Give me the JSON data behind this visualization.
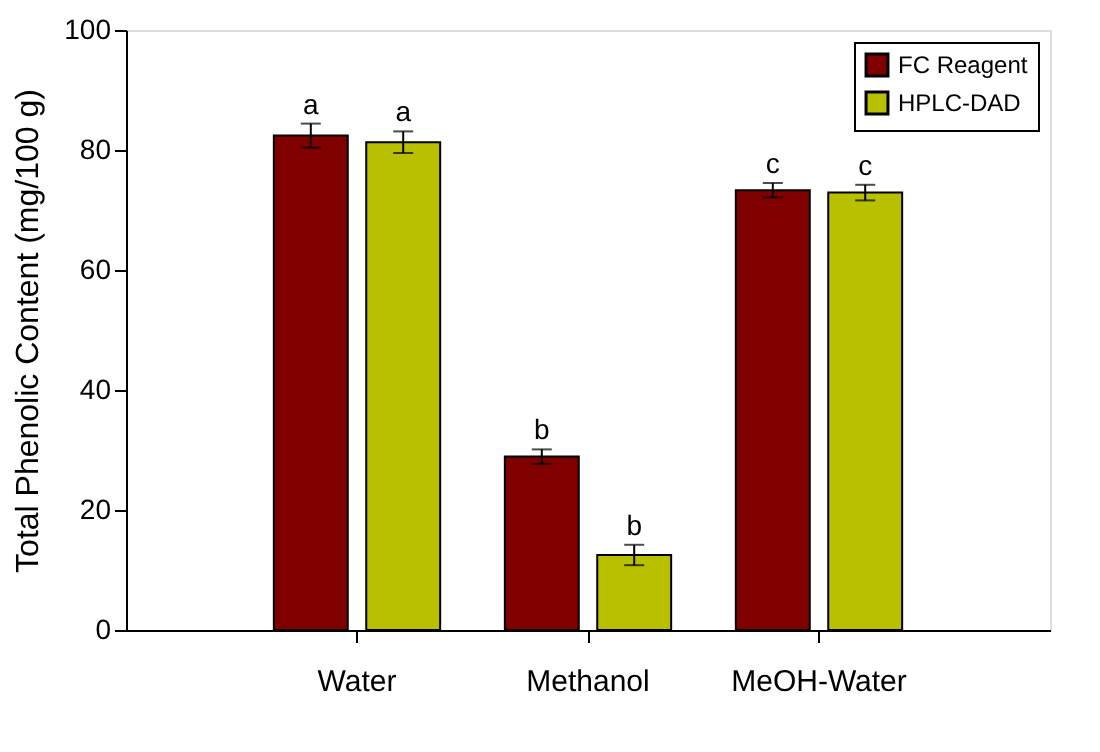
{
  "chart_data": {
    "type": "bar",
    "ylabel": "Total Phenolic Content (mg/100 g)",
    "categories": [
      "Water",
      "Methanol",
      "MeOH-Water"
    ],
    "series": [
      {
        "name": "FC Reagent",
        "color": "#800000",
        "values": [
          82.4,
          28.9,
          73.3
        ],
        "errors": [
          2.0,
          1.2,
          1.2
        ]
      },
      {
        "name": "HPLC-DAD",
        "color": "#b8c000",
        "values": [
          81.3,
          12.5,
          72.9
        ],
        "errors": [
          1.8,
          1.7,
          1.3
        ]
      }
    ],
    "ylim": [
      0,
      100
    ],
    "yticks": [
      0,
      20,
      40,
      60,
      80,
      100
    ],
    "grid": false,
    "legend": "top right",
    "annotations": [
      "a",
      "a",
      "b",
      "b",
      "c",
      "c"
    ]
  }
}
